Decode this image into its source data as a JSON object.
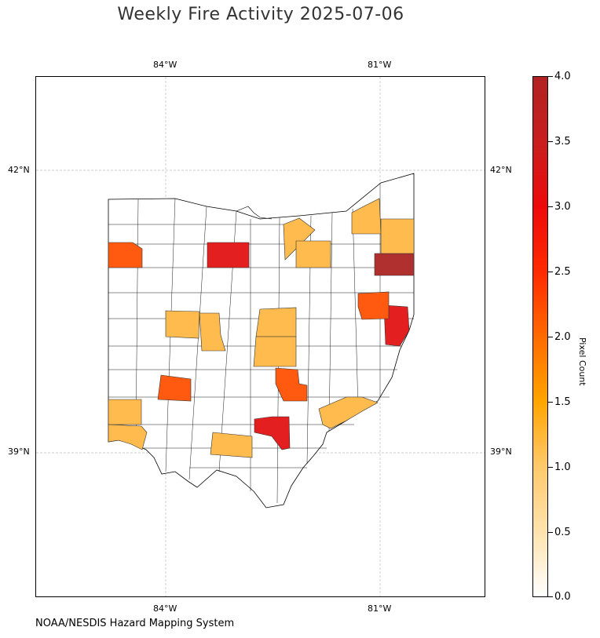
{
  "title": "Weekly Fire Activity 2025-07-06",
  "credit": "NOAA/NESDIS Hazard Mapping System",
  "axes": {
    "lon_ticks": [
      "84°W",
      "81°W"
    ],
    "lat_ticks": [
      "42°N",
      "39°N"
    ]
  },
  "colorbar": {
    "label": "Pixel Count",
    "ticks": [
      "0.0",
      "0.5",
      "1.0",
      "1.5",
      "2.0",
      "2.5",
      "3.0",
      "3.5",
      "4.0"
    ],
    "min": 0,
    "max": 4,
    "colors": [
      "#ffffff",
      "#ffc96a",
      "#ffa500",
      "#ff6a00",
      "#ee1a1a",
      "#b22222"
    ]
  },
  "chart_data": {
    "type": "choropleth",
    "region": "Ohio counties",
    "lon_range": [
      "84°W",
      "81°W"
    ],
    "lat_range": [
      "42°N",
      "39°N"
    ],
    "value_label": "Pixel Count",
    "categories_by_value": {
      "4": [
        "northeast county (top right)"
      ],
      "3": [
        "north-central county",
        "eastern border county",
        "south-central county"
      ],
      "2": [
        "northwest county",
        "west-central southern county",
        "central-south county",
        "east-central county"
      ],
      "1": [
        "north-central pair",
        "northeast upper county",
        "northeast second county",
        "west-central pair",
        "central counties",
        "southwest counties",
        "southern county",
        "southeast county"
      ]
    }
  }
}
